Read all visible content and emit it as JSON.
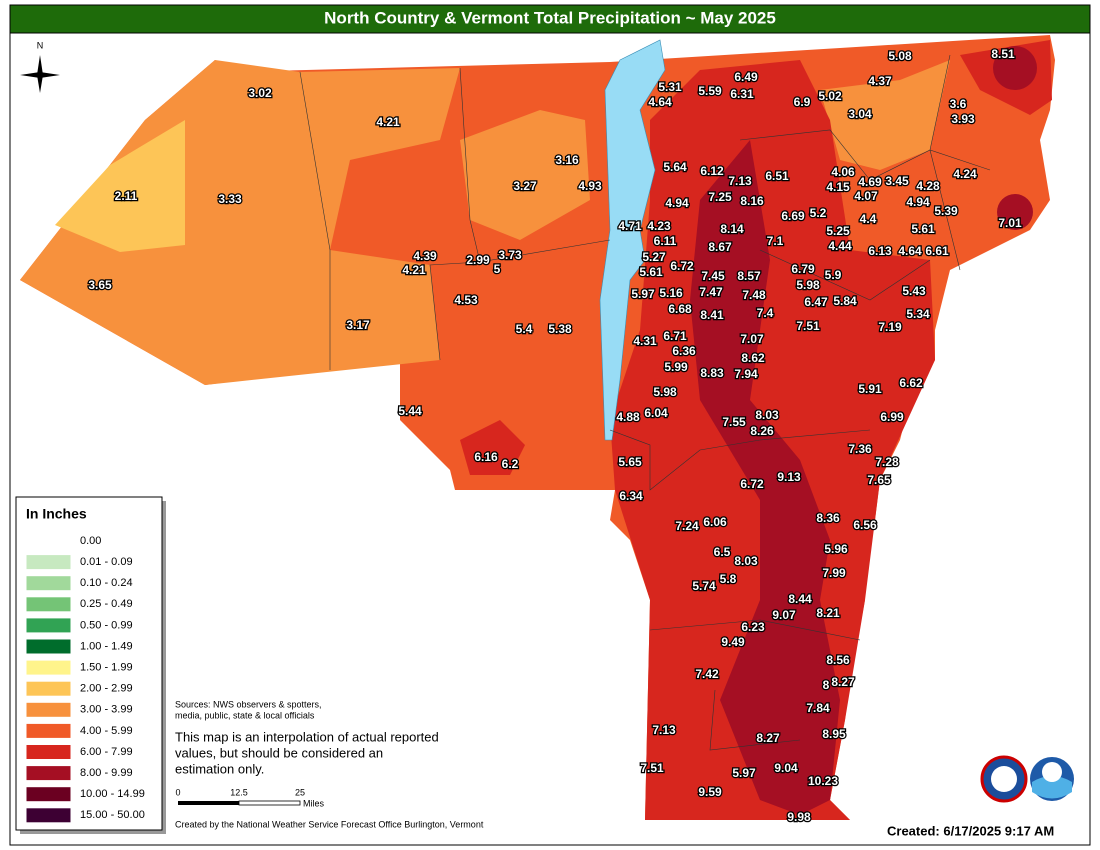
{
  "title": "North Country & Vermont Total Precipitation ~ May 2025",
  "compass": "N",
  "legend": {
    "title": "In Inches",
    "entries": [
      {
        "label": "0.00",
        "color": "#ffffff"
      },
      {
        "label": "0.01 - 0.09",
        "color": "#c7e9c0"
      },
      {
        "label": "0.10 - 0.24",
        "color": "#a1d99b"
      },
      {
        "label": "0.25 - 0.49",
        "color": "#74c476"
      },
      {
        "label": "0.50 - 0.99",
        "color": "#31a354"
      },
      {
        "label": "1.00 - 1.49",
        "color": "#006d2c"
      },
      {
        "label": "1.50 - 1.99",
        "color": "#fff48b"
      },
      {
        "label": "2.00 - 2.99",
        "color": "#fdc557"
      },
      {
        "label": "3.00 - 3.99",
        "color": "#f7913d"
      },
      {
        "label": "4.00 - 5.99",
        "color": "#f05a28"
      },
      {
        "label": "6.00 - 7.99",
        "color": "#d7261e"
      },
      {
        "label": "8.00 - 9.99",
        "color": "#a50f23"
      },
      {
        "label": "10.00 - 14.99",
        "color": "#6b0021"
      },
      {
        "label": "15.00 - 50.00",
        "color": "#3d0033"
      }
    ]
  },
  "stations": [
    5.08,
    8.51,
    6.49,
    5.31,
    5.59,
    6.31,
    4.37,
    4.64,
    6.9,
    5.02,
    3.02,
    3.6,
    3.93,
    4.21,
    3.04,
    3.16,
    5.64,
    6.12,
    7.13,
    6.51,
    4.06,
    4.15,
    4.69,
    3.45,
    4.28,
    4.24,
    4.93,
    3.27,
    2.11,
    3.33,
    7.25,
    8.16,
    4.07,
    4.94,
    4.94,
    5.39,
    6.69,
    5.2,
    4.4,
    7.01,
    4.71,
    4.23,
    8.14,
    5.25,
    5.61,
    6.11,
    7.1,
    4.44,
    6.13,
    4.64,
    6.61,
    8.67,
    4.39,
    2.99,
    3.73,
    5,
    5.27,
    6.72,
    4.21,
    6.79,
    5.9,
    7.45,
    8.57,
    3.65,
    5.61,
    5.98,
    5.43,
    5.97,
    5.16,
    7.47,
    7.48,
    6.47,
    5.84,
    4.53,
    6.68,
    8.41,
    7.4,
    5.34,
    3.17,
    5.4,
    5.38,
    7.51,
    7.19,
    6.71,
    7.07,
    4.31,
    6.36,
    8.62,
    5.99,
    8.83,
    7.94,
    5.91,
    6.62,
    5.98,
    5.44,
    8.03,
    6.99,
    6.04,
    4.88,
    7.55,
    8.26,
    7.36,
    6.16,
    6.2,
    7.28,
    5.65,
    9.13,
    6.72,
    7.65,
    6.34,
    8.36,
    6.56,
    7.24,
    6.06,
    5.96,
    6.5,
    8.03,
    7.99,
    5.8,
    5.74,
    8.44,
    9.07,
    8.21,
    6.23,
    9.49,
    8.56,
    7.42,
    8,
    8.27,
    7.84,
    7.13,
    8.27,
    8.95,
    7.51,
    5.97,
    9.04,
    10.23,
    9.59,
    9.98
  ],
  "sources": [
    "Sources: NWS observers & spotters,",
    "media, public, state & local officials"
  ],
  "note": [
    "This map is an interpolation of actual reported",
    "values, but should be considered an",
    "estimation only."
  ],
  "scale": {
    "ticks": [
      0,
      12.5,
      25
    ],
    "unit": "Miles"
  },
  "credit": "Created by the National Weather Service Forecast Office Burlington, Vermont",
  "created": "Created: 6/17/2025 9:17 AM"
}
